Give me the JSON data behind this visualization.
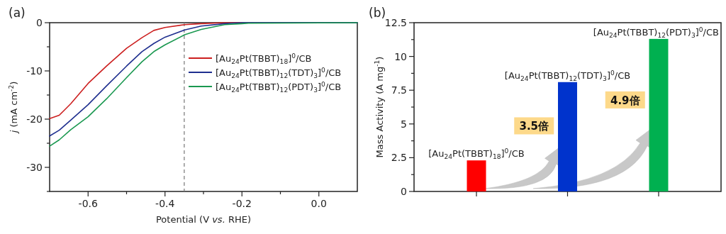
{
  "chart_data": [
    {
      "type": "line",
      "title": "(a)",
      "xlabel": "Potential (V *vs.* RHE)",
      "ylabel": "*j* (mA cm$^{-2}$)",
      "xlim": [
        -0.7,
        0.1
      ],
      "ylim": [
        -35,
        0
      ],
      "xticks": [
        -0.6,
        {
          "value": -0.5,
          "label": null
        },
        -0.4,
        {
          "value": -0.3,
          "label": null
        },
        -0.2,
        {
          "value": -0.1,
          "label": null
        },
        {
          "value": 0,
          "label": "0.0"
        }
      ],
      "yticks": [
        {
          "value": -35,
          "label": null
        },
        -30,
        {
          "value": -25,
          "label": null
        },
        -20,
        {
          "value": -15,
          "label": null
        },
        -10,
        {
          "value": -5,
          "label": null
        },
        0
      ],
      "x": [
        -0.7,
        -0.675,
        -0.645,
        -0.6,
        -0.552,
        -0.5,
        -0.46,
        -0.429,
        -0.4,
        -0.349,
        -0.306,
        -0.245,
        -0.2,
        -0.183,
        0.1
      ],
      "series": [
        {
          "name": "[Au$_{24}$Pt(TBBT)$_{18}$]$^{0}$/CB",
          "color": "#cc1f1f",
          "values": [
            -19.9,
            -19.2,
            -16.8,
            -12.6,
            -9.0,
            -5.3,
            -3.1,
            -1.6,
            -1.0,
            -0.4,
            -0.2,
            0,
            0,
            null,
            null
          ]
        },
        {
          "name": "[Au$_{24}$Pt(TBBT)$_{12}$(TDT)$_{3}$]$^{0}$/CB",
          "color": "#1f2f8f",
          "values": [
            -23.5,
            -22.3,
            -20.2,
            -17.0,
            -13.1,
            -9.0,
            -6.0,
            -4.3,
            -3.0,
            -1.5,
            -0.7,
            -0.2,
            0,
            0,
            0
          ]
        },
        {
          "name": "[Au$_{24}$Pt(TBBT)$_{12}$(PDT)$_{3}$]$^{0}$/CB",
          "color": "#1a9850",
          "values": [
            -25.6,
            -24.3,
            -22.2,
            -19.5,
            -15.8,
            -11.4,
            -8.1,
            -6.0,
            -4.6,
            -2.5,
            -1.4,
            -0.4,
            -0.2,
            -0.1,
            0
          ]
        }
      ],
      "ref_lines": [
        {
          "axis": "x",
          "value": -0.35,
          "color": "#777777",
          "line_style": "dashed"
        }
      ],
      "legend": "top right",
      "line_style": "solid",
      "marker": "none"
    },
    {
      "type": "bar",
      "title": "(b)",
      "ylabel": "Mass Activity (A mg$^{-1}$)",
      "categories": [
        "[Au$_{24}$Pt(TBBT)$_{18}$]$^{0}$/CB",
        "[Au$_{24}$Pt(TBBT)$_{12}$(TDT)$_{3}$]$^{0}$/CB",
        "[Au$_{24}$Pt(TBBT)$_{12}$(PDT)$_{3}$]$^{0}$/CB"
      ],
      "values": [
        2.3,
        8.1,
        11.3
      ],
      "colors": [
        "#ff0000",
        "#0033cc",
        "#00b050"
      ],
      "ylim": [
        0,
        12.5
      ],
      "yticks": [
        0,
        {
          "value": 1.25,
          "label": null
        },
        2.5,
        {
          "value": 3.75,
          "label": null
        },
        5,
        {
          "value": 6.25,
          "label": null
        },
        7.5,
        {
          "value": 8.75,
          "label": null
        },
        10,
        {
          "value": 11.25,
          "label": null
        },
        12.5
      ],
      "annotations": [
        "**3.5倍**",
        "**4.9倍**"
      ]
    }
  ]
}
